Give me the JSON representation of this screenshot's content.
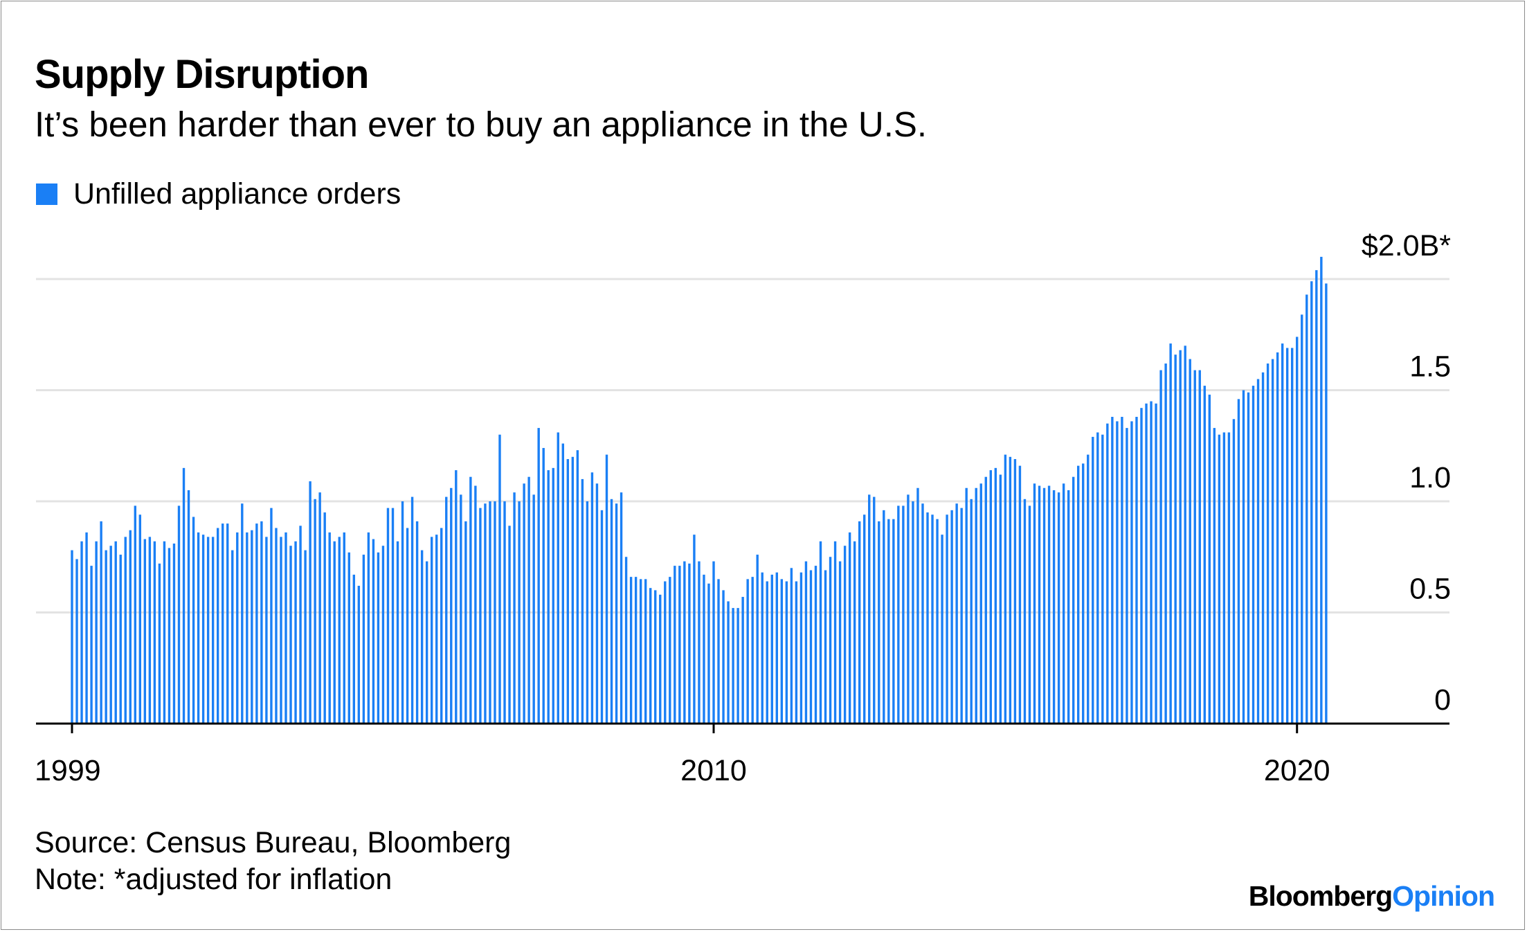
{
  "title": "Supply Disruption",
  "subtitle": "It’s been harder than ever to buy an appliance in the U.S.",
  "colors": {
    "bar": "#1a7ff5",
    "grid": "#e3e3e3",
    "axis": "#000000"
  },
  "source": "Source: Census Bureau, Bloomberg",
  "note": "Note: *adjusted for inflation",
  "brand": {
    "main": "Bloomberg",
    "accent": "Opinion"
  },
  "chart_data": {
    "type": "bar",
    "legend": {
      "label": "Unfilled appliance orders",
      "position": "top-left"
    },
    "ylim": [
      0,
      2.0
    ],
    "yticks": [
      {
        "value": 0,
        "label": "0"
      },
      {
        "value": 0.5,
        "label": "0.5"
      },
      {
        "value": 1.0,
        "label": "1.0"
      },
      {
        "value": 1.5,
        "label": "1.5"
      },
      {
        "value": 2.0,
        "label": "$2.0B*"
      }
    ],
    "xticks": [
      {
        "value": 1999,
        "label": "1999"
      },
      {
        "value": 2010,
        "label": "2010"
      },
      {
        "value": 2020,
        "label": "2020"
      }
    ],
    "grid": true,
    "y_axis_side": "right",
    "x_start": "1999-01",
    "frequency": "monthly",
    "series": [
      {
        "name": "Unfilled appliance orders",
        "values": [
          0.78,
          0.74,
          0.82,
          0.86,
          0.71,
          0.82,
          0.91,
          0.78,
          0.8,
          0.82,
          0.76,
          0.84,
          0.87,
          0.98,
          0.94,
          0.83,
          0.84,
          0.82,
          0.72,
          0.82,
          0.79,
          0.81,
          0.98,
          1.15,
          1.05,
          0.93,
          0.86,
          0.85,
          0.84,
          0.84,
          0.88,
          0.9,
          0.9,
          0.78,
          0.86,
          0.99,
          0.86,
          0.87,
          0.9,
          0.91,
          0.84,
          0.97,
          0.88,
          0.84,
          0.86,
          0.8,
          0.82,
          0.89,
          0.78,
          1.09,
          1.01,
          1.04,
          0.95,
          0.86,
          0.82,
          0.84,
          0.86,
          0.77,
          0.67,
          0.62,
          0.76,
          0.86,
          0.83,
          0.77,
          0.8,
          0.97,
          0.97,
          0.82,
          1.0,
          0.88,
          1.02,
          0.91,
          0.78,
          0.73,
          0.84,
          0.85,
          0.88,
          1.02,
          1.06,
          1.14,
          1.03,
          0.91,
          1.11,
          1.07,
          0.97,
          0.99,
          1.0,
          1.0,
          1.3,
          1.0,
          0.89,
          1.04,
          1.0,
          1.08,
          1.11,
          1.03,
          1.33,
          1.24,
          1.14,
          1.15,
          1.31,
          1.26,
          1.19,
          1.2,
          1.23,
          1.1,
          1.0,
          1.13,
          1.08,
          0.96,
          1.21,
          1.01,
          0.99,
          1.04,
          0.75,
          0.66,
          0.66,
          0.65,
          0.65,
          0.61,
          0.6,
          0.58,
          0.64,
          0.66,
          0.71,
          0.71,
          0.73,
          0.72,
          0.85,
          0.73,
          0.67,
          0.63,
          0.73,
          0.65,
          0.6,
          0.55,
          0.52,
          0.52,
          0.57,
          0.65,
          0.66,
          0.76,
          0.68,
          0.64,
          0.67,
          0.68,
          0.65,
          0.64,
          0.7,
          0.64,
          0.68,
          0.73,
          0.69,
          0.71,
          0.82,
          0.69,
          0.75,
          0.82,
          0.73,
          0.8,
          0.86,
          0.82,
          0.91,
          0.94,
          1.03,
          1.02,
          0.91,
          0.96,
          0.92,
          0.92,
          0.98,
          0.98,
          1.03,
          1.0,
          1.06,
          0.99,
          0.95,
          0.94,
          0.92,
          0.85,
          0.94,
          0.96,
          0.99,
          0.97,
          1.06,
          1.01,
          1.06,
          1.08,
          1.11,
          1.14,
          1.15,
          1.12,
          1.21,
          1.2,
          1.19,
          1.16,
          1.01,
          0.98,
          1.08,
          1.07,
          1.06,
          1.07,
          1.05,
          1.04,
          1.08,
          1.05,
          1.11,
          1.16,
          1.17,
          1.21,
          1.29,
          1.31,
          1.3,
          1.35,
          1.38,
          1.36,
          1.38,
          1.33,
          1.36,
          1.38,
          1.42,
          1.44,
          1.45,
          1.44,
          1.59,
          1.62,
          1.71,
          1.66,
          1.68,
          1.7,
          1.64,
          1.59,
          1.59,
          1.52,
          1.48,
          1.33,
          1.3,
          1.31,
          1.31,
          1.37,
          1.46,
          1.5,
          1.49,
          1.52,
          1.55,
          1.58,
          1.62,
          1.64,
          1.67,
          1.71,
          1.69,
          1.69,
          1.74,
          1.84,
          1.93,
          1.99,
          2.04,
          2.1,
          1.98
        ]
      }
    ]
  }
}
